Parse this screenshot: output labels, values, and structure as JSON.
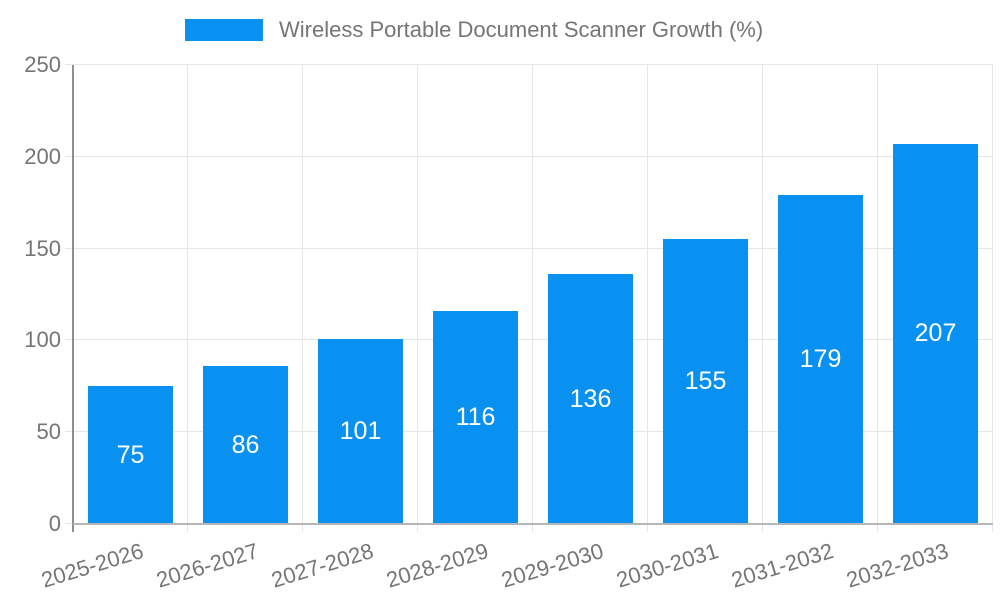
{
  "chart_data": {
    "type": "bar",
    "title": "Wireless Portable Document Scanner Growth (%)",
    "categories": [
      "2025-2026",
      "2026-2027",
      "2027-2028",
      "2028-2029",
      "2029-2030",
      "2030-2031",
      "2031-2032",
      "2032-2033"
    ],
    "values": [
      75,
      86,
      101,
      116,
      136,
      155,
      179,
      207
    ],
    "xlabel": "",
    "ylabel": "",
    "ylim": [
      0,
      250
    ],
    "yticks": [
      0,
      50,
      100,
      150,
      200,
      250
    ],
    "grid": true,
    "legend_position": "top",
    "x_label_rotation_deg": -17,
    "colors": {
      "bar": "#0991f2",
      "bar_value_label": "#ffffff",
      "axis_text": "#757575",
      "legend_text": "#757575",
      "gridline": "#e6e6e6",
      "y_axis_line": "#8f8f8f",
      "x_axis_line": "#b6b6b6",
      "background": "#ffffff"
    }
  }
}
